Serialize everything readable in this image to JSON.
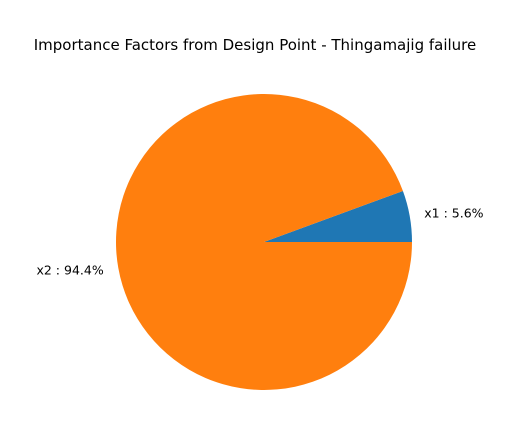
{
  "chart_data": {
    "type": "pie",
    "title": "Importance Factors from Design Point - Thingamajig failure",
    "start_angle_deg": 0,
    "direction": "counterclockwise",
    "slices": [
      {
        "label": "x1",
        "value": 5.6,
        "display": "x1 : 5.6%",
        "color": "#1f77b4"
      },
      {
        "label": "x2",
        "value": 94.4,
        "display": "x2 : 94.4%",
        "color": "#ff7f0e"
      }
    ]
  }
}
